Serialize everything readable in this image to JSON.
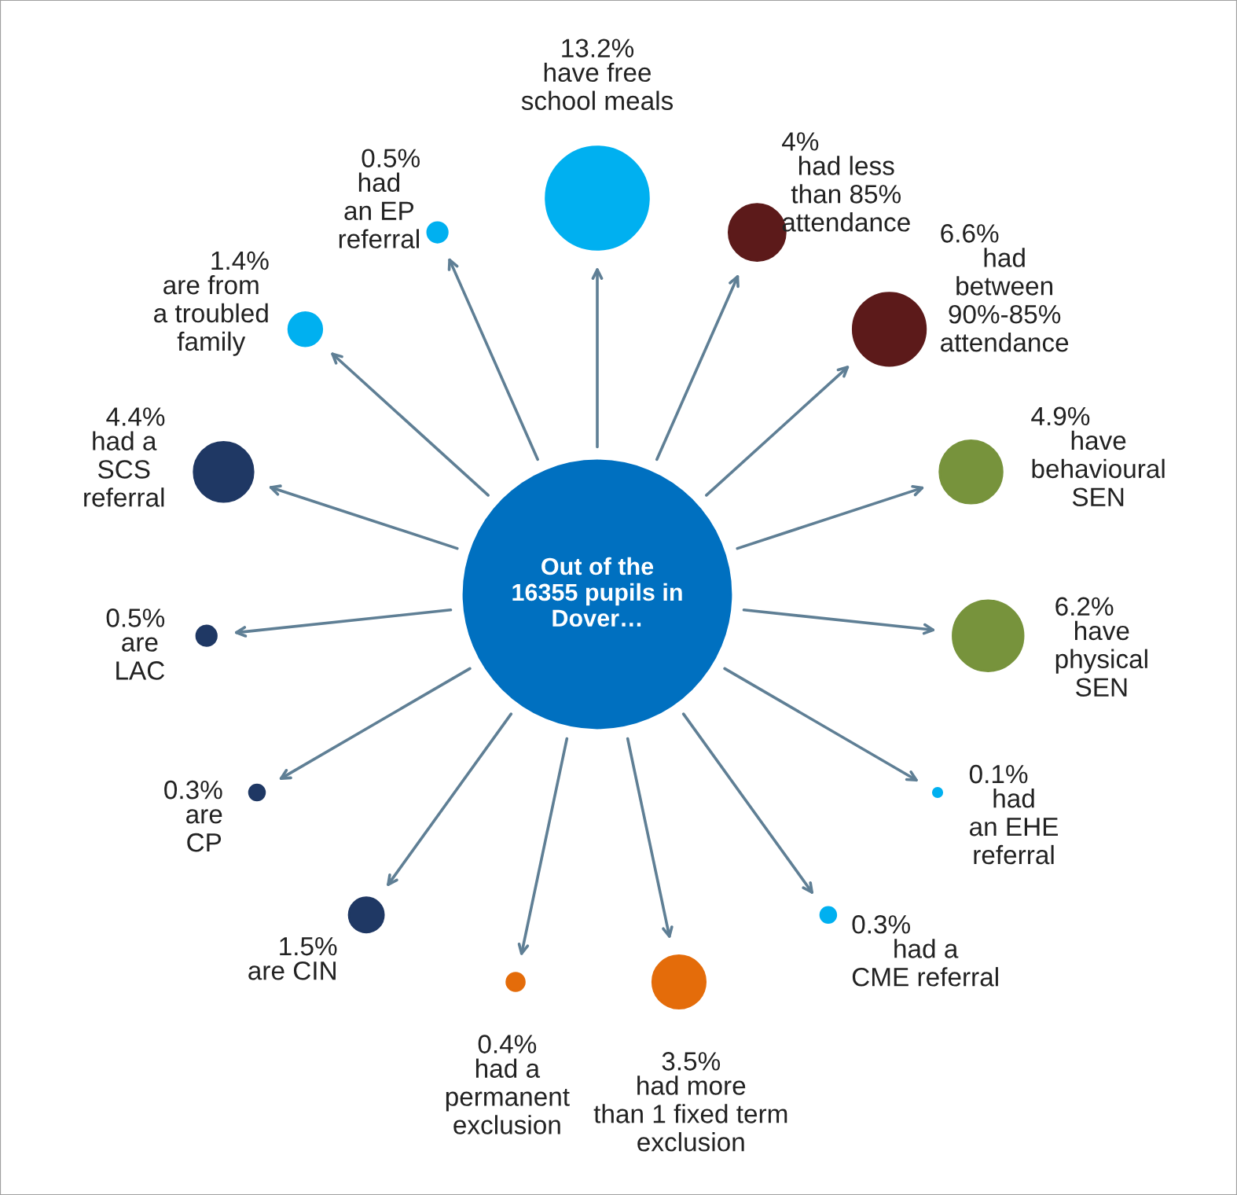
{
  "chart_data": {
    "type": "other",
    "categories": [
      "have free\nschool meals",
      "had less\nthan 85%\nattendance",
      "had\nbetween\n90%-85%\nattendance",
      "have\nbehavioural\nSEN",
      "have\nphysical\nSEN",
      "had\nan EHE\nreferral",
      "had a\nCME referral",
      "had more\nthan 1 fixed term\nexclusion",
      "had a\npermanent\nexclusion",
      "are CIN",
      "are\nCP",
      "are\nLAC",
      "had a\nSCS\nreferral",
      "are from\na troubled\nfamily",
      "had\nan EP\nreferral"
    ],
    "values": [
      13.2,
      4,
      6.6,
      4.9,
      6.2,
      0.1,
      0.3,
      3.5,
      0.4,
      1.5,
      0.3,
      0.5,
      4.4,
      1.4,
      0.5
    ],
    "value_labels": [
      "13.2%",
      "4%",
      "6.6%",
      "4.9%",
      "6.2%",
      "0.1%",
      "0.3%",
      "3.5%",
      "0.4%",
      "1.5%",
      "0.3%",
      "0.5%",
      "4.4%",
      "1.4%",
      "0.5%"
    ],
    "colors": [
      "#00b0f0",
      "#5c1a1a",
      "#5c1a1a",
      "#77933c",
      "#77933c",
      "#00b0f0",
      "#00b0f0",
      "#e46c0a",
      "#e46c0a",
      "#1f3864",
      "#1f3864",
      "#1f3864",
      "#1f3864",
      "#00b0f0",
      "#00b0f0"
    ],
    "annotations": [
      "Out of the\n16355 pupils in\nDover…"
    ]
  }
}
